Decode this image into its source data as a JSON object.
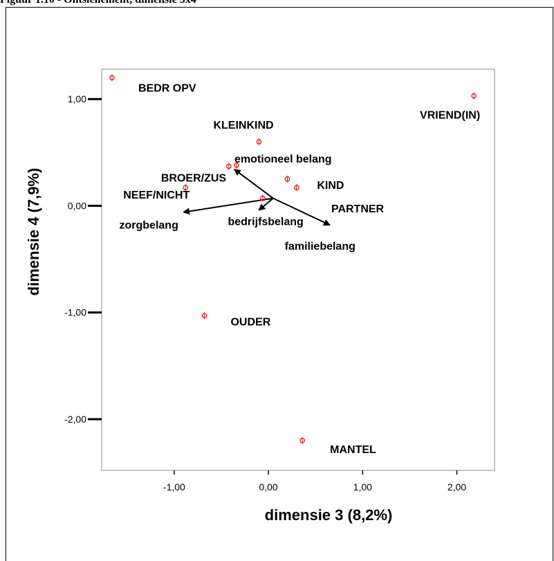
{
  "caption": "Figuur 1.10 - Ontslenement, dimensie 3x4",
  "chart_data": {
    "type": "scatter",
    "title": "",
    "xlabel": "dimensie 3 (8,2%)",
    "ylabel": "dimensie 4 (7,9%)",
    "xlim": [
      -1.77,
      2.4
    ],
    "ylim": [
      -2.48,
      1.28
    ],
    "xticks": [
      -1.0,
      0.0,
      1.0,
      2.0
    ],
    "xtick_labels": [
      "-1,00",
      "0,00",
      "1,00",
      "2,00"
    ],
    "yticks": [
      1.0,
      0.0,
      -1.0,
      -2.0
    ],
    "ytick_labels": [
      "1,00",
      "0,00",
      "-1,00",
      "-2,00"
    ],
    "grid": false,
    "marker_color": "#e8141b",
    "points": [
      {
        "label": "BEDR OPV",
        "x": -1.66,
        "y": 1.2
      },
      {
        "label": "VRIEND(IN)",
        "x": 2.18,
        "y": 1.03
      },
      {
        "label": "KLEINKIND",
        "x": -0.1,
        "y": 0.6
      },
      {
        "label": "BROER/ZUS",
        "x": -0.42,
        "y": 0.37
      },
      {
        "label": "",
        "x": -0.34,
        "y": 0.38
      },
      {
        "label": "NEEF/NICHT",
        "x": -0.88,
        "y": 0.17
      },
      {
        "label": "KIND",
        "x": 0.2,
        "y": 0.25
      },
      {
        "label": "PARTNER",
        "x": 0.3,
        "y": 0.17
      },
      {
        "label": "",
        "x": -0.06,
        "y": 0.07
      },
      {
        "label": "OUDER",
        "x": -0.68,
        "y": -1.03
      },
      {
        "label": "MANTEL",
        "x": 0.36,
        "y": -2.2
      }
    ],
    "vectors": [
      {
        "label": "emotioneel belang",
        "x": -0.36,
        "y": 0.34
      },
      {
        "label": "zorgbelang",
        "x": -0.9,
        "y": -0.06
      },
      {
        "label": "bedrijfsbelang",
        "x": -0.1,
        "y": -0.04
      },
      {
        "label": "familiebelang",
        "x": 0.65,
        "y": -0.18
      }
    ],
    "vector_origin": {
      "x": 0.05,
      "y": 0.07
    }
  }
}
